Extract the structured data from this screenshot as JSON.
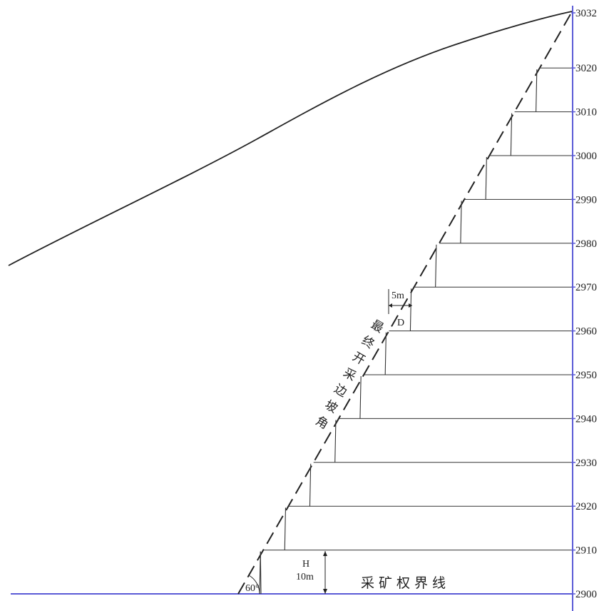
{
  "elevations": [
    "3032",
    "3020",
    "3010",
    "3000",
    "2990",
    "2980",
    "2970",
    "2960",
    "2950",
    "2940",
    "2930",
    "2920",
    "2910",
    "2900"
  ],
  "annotations": {
    "berm_width": "5m",
    "berm_label": "D",
    "bench_height_symbol": "H",
    "bench_height_value": "10m",
    "slope_angle": "60°",
    "boundary_label": "采矿权界线",
    "final_slope_label": [
      "最",
      "终",
      "开",
      "采",
      "边",
      "坡",
      "角"
    ]
  },
  "colors": {
    "boundary_line": "#5b5bd6",
    "linework": "#222222"
  }
}
